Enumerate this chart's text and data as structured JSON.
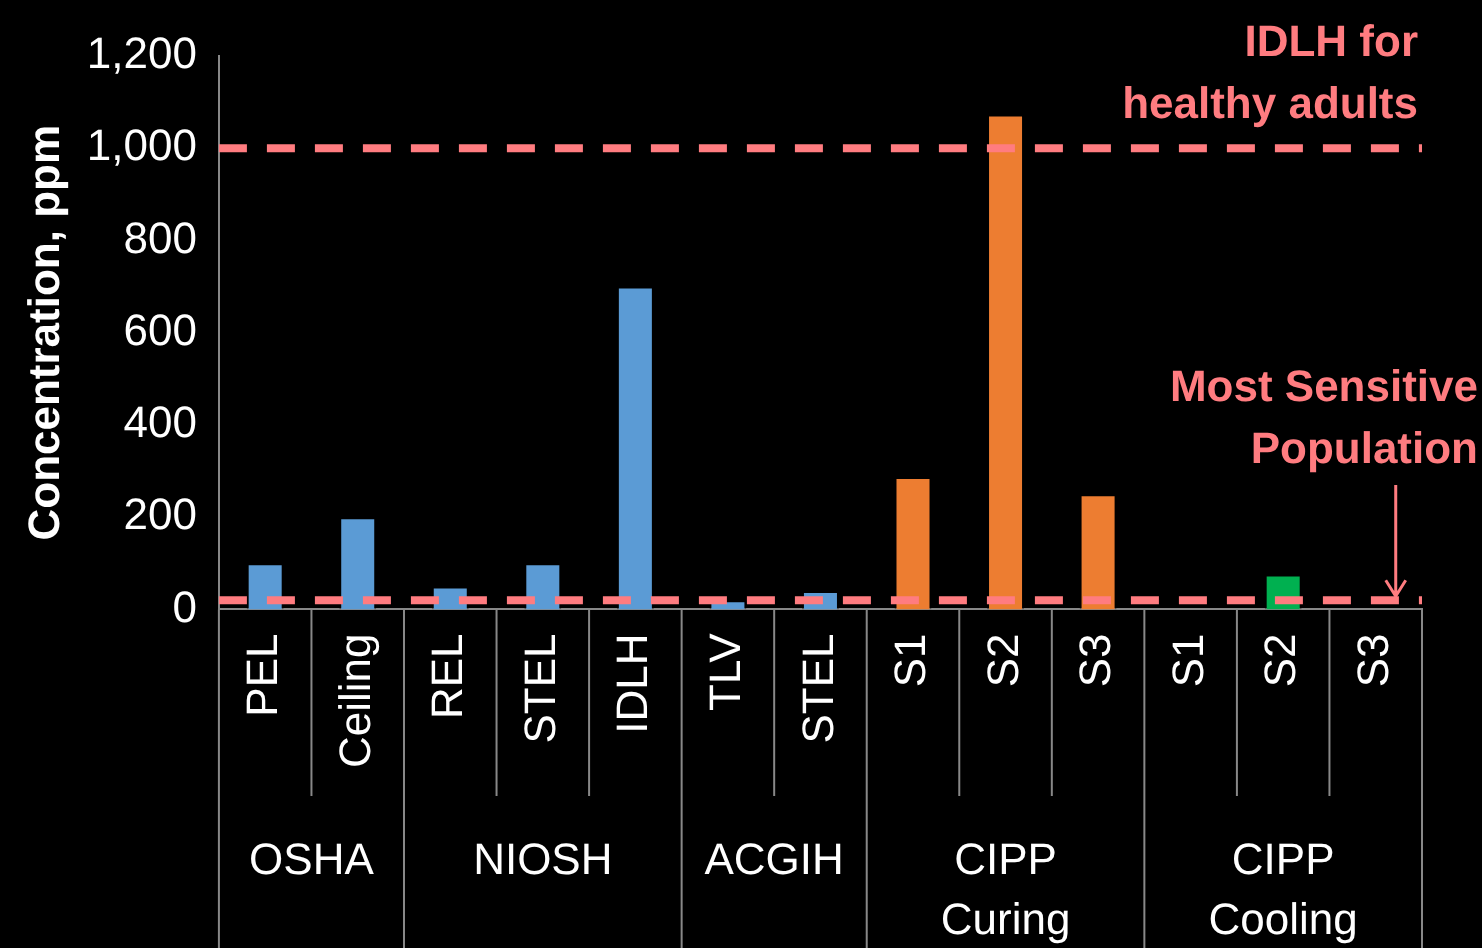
{
  "chart_data": {
    "type": "bar",
    "ylabel": "Concentration, ppm",
    "categories": [
      "PEL",
      "Ceiling",
      "REL",
      "STEL",
      "IDLH",
      "TLV",
      "STEL",
      "S1",
      "S2",
      "S3",
      "S1",
      "S2",
      "S3"
    ],
    "values": [
      100,
      200,
      50,
      100,
      700,
      20,
      40,
      287,
      1073,
      250,
      null,
      76,
      null
    ],
    "colors": [
      "#5b9bd5",
      "#5b9bd5",
      "#5b9bd5",
      "#5b9bd5",
      "#5b9bd5",
      "#5b9bd5",
      "#5b9bd5",
      "#ed7d31",
      "#ed7d31",
      "#ed7d31",
      "#00b050",
      "#00b050",
      "#00b050"
    ],
    "ylim": [
      0,
      1200
    ],
    "yticks": [
      0,
      200,
      400,
      600,
      800,
      {
        "value": 1000,
        "label": "1,000"
      },
      {
        "value": 1200,
        "label": "1,200"
      }
    ],
    "ref_lines": [
      {
        "axis": "y",
        "value": 1000,
        "label": "IDLH for healthy adults",
        "color": "#ff7c80",
        "line_style": "dashed"
      },
      {
        "axis": "y",
        "value": 20,
        "label": "Most Sensitive Population",
        "color": "#ff7c80",
        "line_style": "dashed"
      }
    ],
    "annotations": [
      "OSHA",
      "NIOSH",
      "ACGIH",
      "CIPP Curing",
      "CIPP Cooling"
    ],
    "grid": false,
    "legend": false
  }
}
